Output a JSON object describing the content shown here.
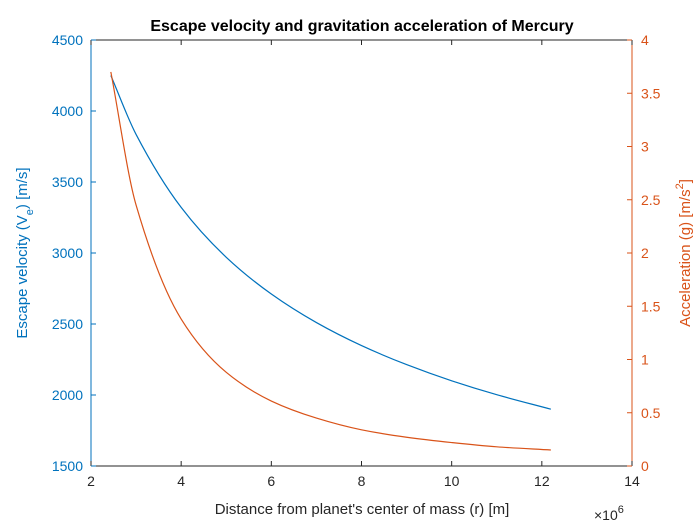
{
  "chart_data": {
    "type": "line",
    "title": "Escape velocity and gravitation acceleration of Mercury",
    "xlabel": "Distance from planet's center of mass (r) [m]",
    "x_exponent_label": "×10",
    "x_exponent_power": "6",
    "x_multiplier": 1000000,
    "xlim": [
      2,
      14
    ],
    "xticks": [
      2,
      4,
      6,
      8,
      10,
      12,
      14
    ],
    "y_left": {
      "label_pre": "Escape velocity (V",
      "label_sub": "e",
      "label_post": ") [m/s]",
      "lim": [
        1500,
        4500
      ],
      "ticks": [
        1500,
        2000,
        2500,
        3000,
        3500,
        4000,
        4500
      ],
      "color": "#0072BD"
    },
    "y_right": {
      "label_pre": "Acceleration (g) [m/s",
      "label_sup": "2",
      "label_post": "]",
      "lim": [
        0,
        4
      ],
      "ticks": [
        0,
        0.5,
        1,
        1.5,
        2,
        2.5,
        3,
        3.5,
        4
      ],
      "color": "#D95319"
    },
    "grid": false,
    "series": [
      {
        "axis": "left",
        "color": "#0072BD",
        "x": [
          2.44,
          3,
          4,
          5,
          6,
          7,
          8,
          9,
          10,
          11,
          12.2
        ],
        "y": [
          4250,
          3835,
          3321,
          2970,
          2711,
          2510,
          2348,
          2214,
          2100,
          2002,
          1900
        ]
      },
      {
        "axis": "right",
        "color": "#D95319",
        "x": [
          2.44,
          3,
          4,
          5,
          6,
          7,
          8,
          9,
          10,
          11,
          12.2
        ],
        "y": [
          3.7,
          2.45,
          1.38,
          0.88,
          0.61,
          0.45,
          0.34,
          0.27,
          0.22,
          0.18,
          0.15
        ]
      }
    ]
  }
}
